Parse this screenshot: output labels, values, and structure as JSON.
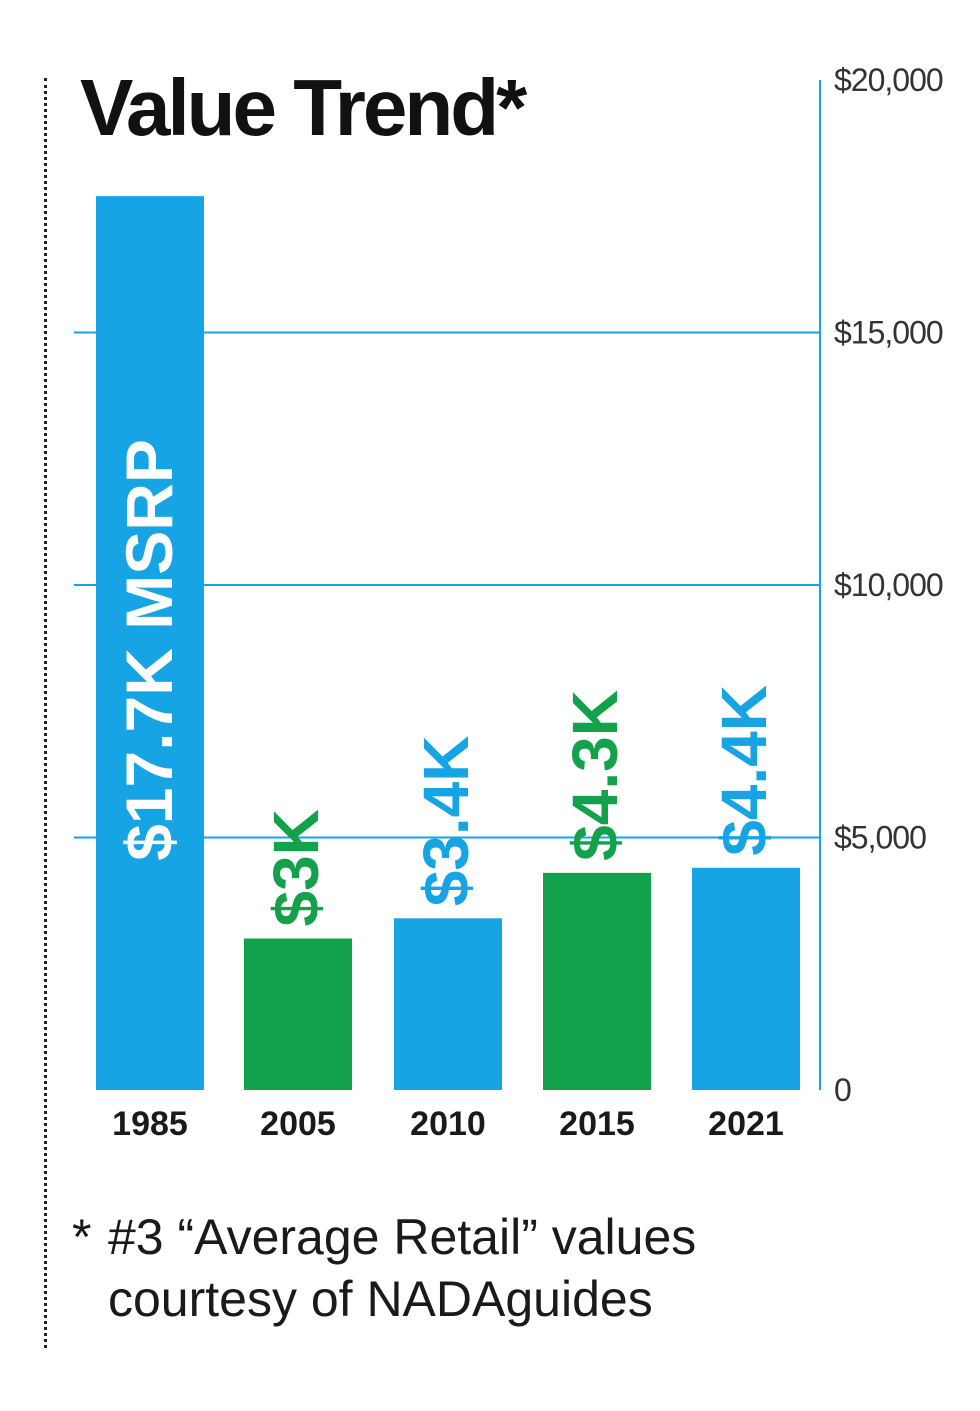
{
  "chart_data": {
    "type": "bar",
    "title": "Value Trend*",
    "categories": [
      "1985",
      "2005",
      "2010",
      "2015",
      "2021"
    ],
    "values": [
      17700,
      3000,
      3400,
      4300,
      4400
    ],
    "value_labels": [
      "$17.7K MSRP",
      "$3K",
      "$3.4K",
      "$4.3K",
      "$4.4K"
    ],
    "bar_colors": [
      "#16a4e4",
      "#14a14b",
      "#16a4e4",
      "#14a14b",
      "#16a4e4"
    ],
    "ylim": [
      0,
      20000
    ],
    "yticks": [
      0,
      5000,
      10000,
      15000,
      20000
    ],
    "ytick_labels": [
      "0",
      "$5,000",
      "$10,000",
      "$15,000",
      "$20,000"
    ],
    "y_axis_side": "right",
    "grid": true,
    "gridline_color": "#16a4e4",
    "xlabel": "",
    "ylabel": ""
  },
  "footnote": {
    "star": "*",
    "line1": "#3 “Average Retail” values",
    "line2": "courtesy of NADAguides"
  }
}
